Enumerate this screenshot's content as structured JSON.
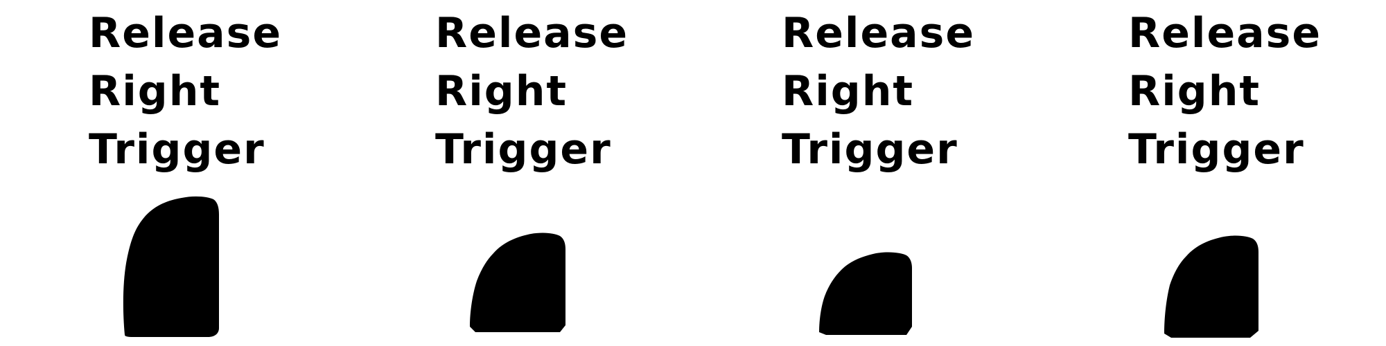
{
  "prompt_lines": [
    "Release",
    "Right",
    "Trigger"
  ],
  "trigger_colour": "#000000",
  "frames": [
    {
      "prompt": {
        "line1": "Release",
        "line2": "Right",
        "line3": "Trigger"
      }
    },
    {
      "prompt": {
        "line1": "Release",
        "line2": "Right",
        "line3": "Trigger"
      }
    },
    {
      "prompt": {
        "line1": "Release",
        "line2": "Right",
        "line3": "Trigger"
      }
    },
    {
      "prompt": {
        "line1": "Release",
        "line2": "Right",
        "line3": "Trigger"
      }
    }
  ]
}
